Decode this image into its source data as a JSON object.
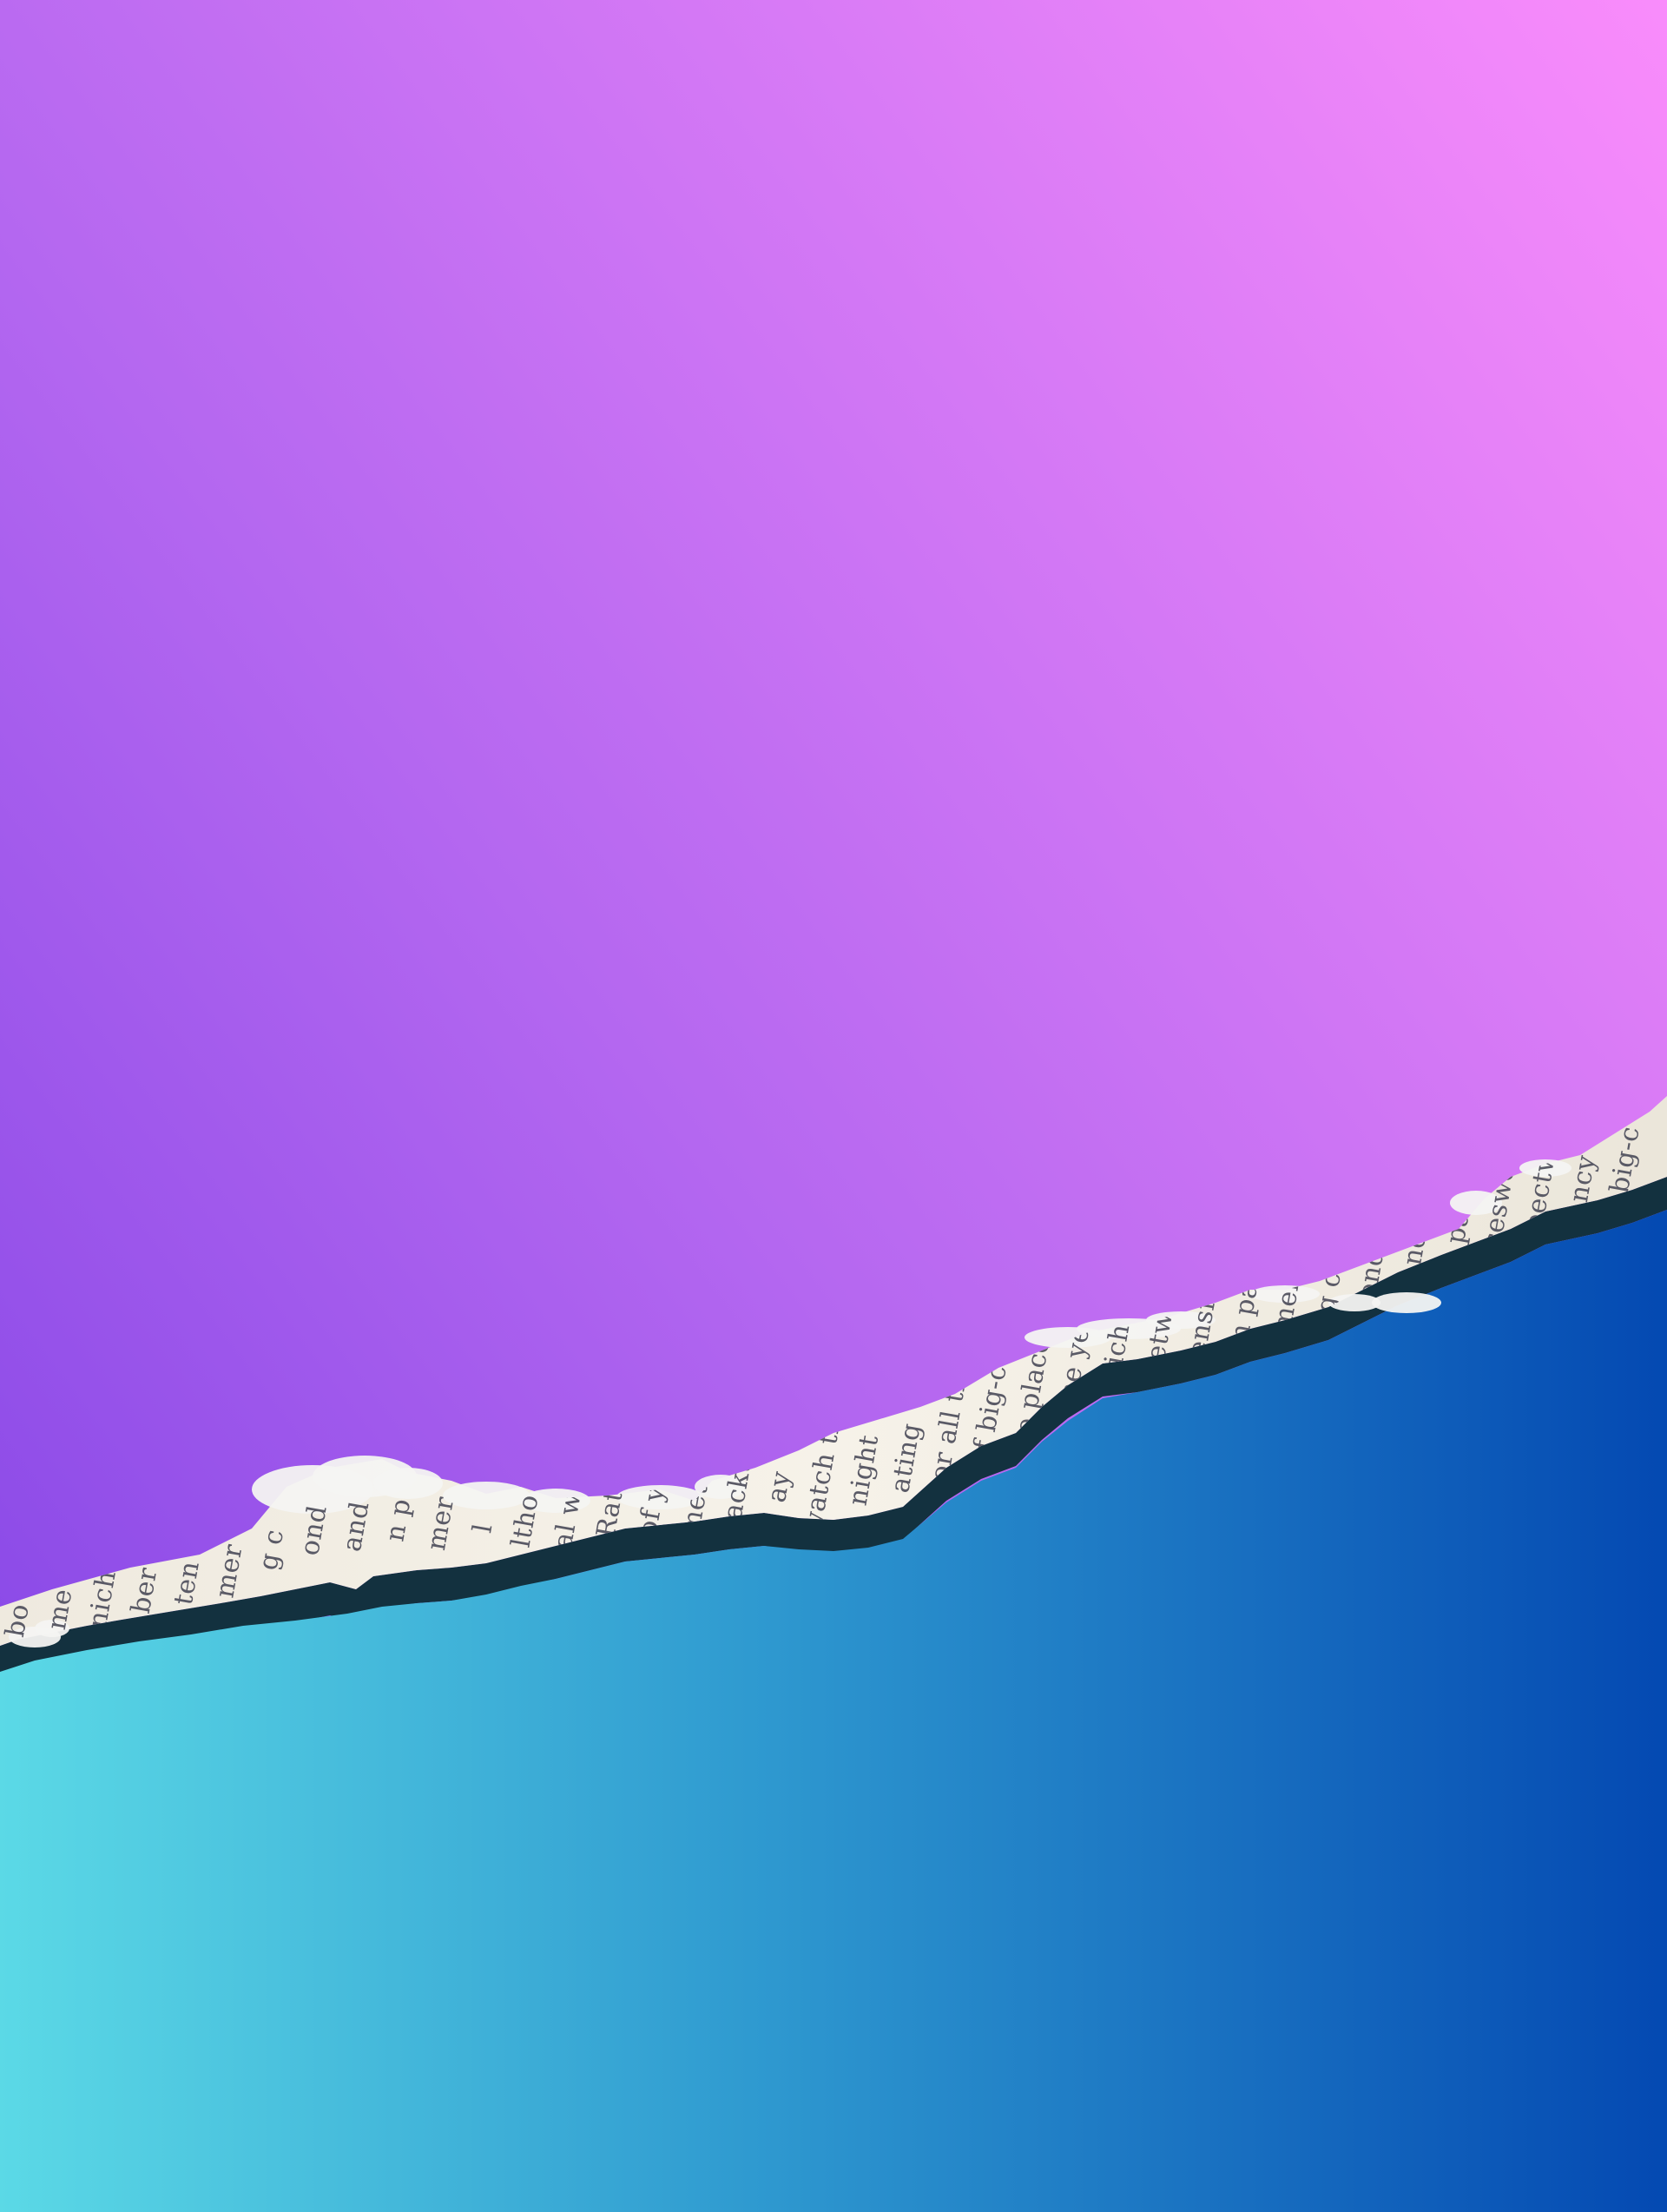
{
  "artwork": {
    "description_colors": {
      "purple_top_left": "#7b3fe4",
      "purple_mid": "#b467f0",
      "pink_top_right": "#f98cfb",
      "teal_bottom_left": "#5bd9e6",
      "blue_bottom_right": "#0449b2",
      "paper": "#f3efe6",
      "paper_shadow": "#14303f"
    },
    "paper_fragments": [
      "bo",
      "me",
      "nich",
      "ber",
      "ten",
      "mer",
      "g c",
      "ond",
      "and",
      "n p",
      "mer",
      "l",
      "ltho",
      "al w",
      "Rat",
      "n of yea",
      "somethi",
      "blackth",
      "ay",
      "watch ti",
      "night",
      "ating",
      "or all ti",
      "f big-c",
      "e place",
      "me yea",
      "nich l",
      "betwe",
      "tensio",
      "n pa",
      "mer",
      "g c",
      "ond",
      "and",
      "n pa",
      "iceswe",
      "bectw",
      "ncy",
      "big-c"
    ]
  }
}
